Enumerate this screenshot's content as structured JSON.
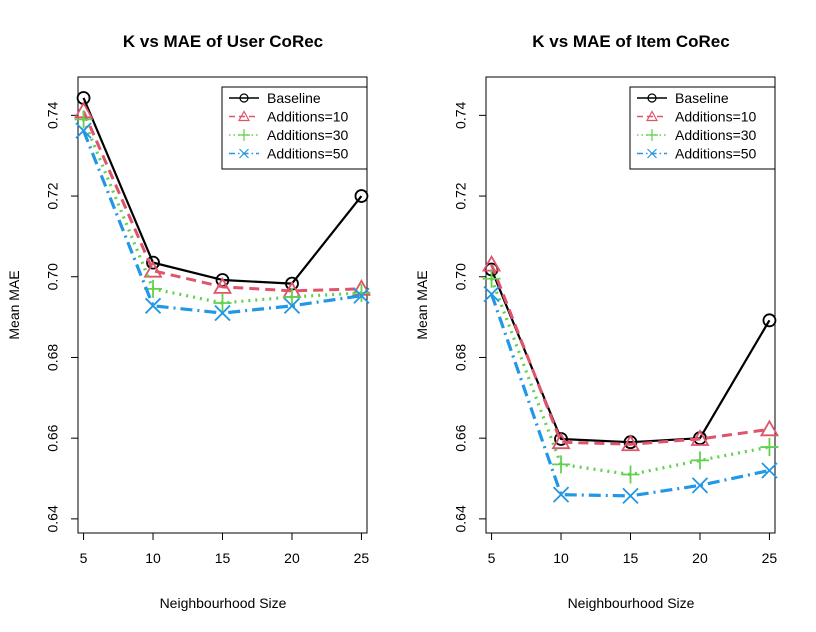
{
  "chart_data": [
    {
      "type": "line",
      "title": "K vs MAE of User CoRec",
      "xlabel": "Neighbourhood Size",
      "ylabel": "Mean MAE",
      "x": [
        5,
        10,
        15,
        20,
        25
      ],
      "xticks": [
        "5",
        "10",
        "15",
        "20",
        "25"
      ],
      "yticks": [
        "0.64",
        "0.66",
        "0.68",
        "0.70",
        "0.72",
        "0.74"
      ],
      "xlim": [
        4.6,
        25.4
      ],
      "ylim": [
        0.6365,
        0.7495
      ],
      "legend_position": "top-right",
      "series": [
        {
          "name": "Baseline",
          "values": [
            0.7443,
            0.7035,
            0.6992,
            0.6983,
            0.72
          ]
        },
        {
          "name": "Additions=10",
          "values": [
            0.741,
            0.7015,
            0.6975,
            0.6965,
            0.697
          ]
        },
        {
          "name": "Additions=30",
          "values": [
            0.739,
            0.697,
            0.6935,
            0.695,
            0.696
          ]
        },
        {
          "name": "Additions=50",
          "values": [
            0.7362,
            0.6928,
            0.691,
            0.6928,
            0.6953
          ]
        }
      ]
    },
    {
      "type": "line",
      "title": "K vs MAE of Item CoRec",
      "xlabel": "Neighbourhood Size",
      "ylabel": "Mean MAE",
      "x": [
        5,
        10,
        15,
        20,
        25
      ],
      "xticks": [
        "5",
        "10",
        "15",
        "20",
        "25"
      ],
      "yticks": [
        "0.64",
        "0.66",
        "0.68",
        "0.70",
        "0.72",
        "0.74"
      ],
      "xlim": [
        4.6,
        25.4
      ],
      "ylim": [
        0.6365,
        0.7495
      ],
      "legend_position": "top-right",
      "series": [
        {
          "name": "Baseline",
          "values": [
            0.7018,
            0.6598,
            0.659,
            0.66,
            0.6892
          ]
        },
        {
          "name": "Additions=10",
          "values": [
            0.703,
            0.659,
            0.6585,
            0.6598,
            0.6622
          ]
        },
        {
          "name": "Additions=30",
          "values": [
            0.6995,
            0.6535,
            0.651,
            0.6545,
            0.6578
          ]
        },
        {
          "name": "Additions=50",
          "values": [
            0.6957,
            0.646,
            0.6457,
            0.6483,
            0.652
          ]
        }
      ]
    }
  ],
  "series_styles": [
    {
      "color": "#000000",
      "dash": "",
      "width": 2.2,
      "marker": "circle"
    },
    {
      "color": "#DF536B",
      "dash": "10,6",
      "width": 3,
      "marker": "triangle"
    },
    {
      "color": "#61D04F",
      "dash": "2,5",
      "width": 3.2,
      "marker": "plus"
    },
    {
      "color": "#2297E6",
      "dash": "12,5,2,5",
      "width": 3.2,
      "marker": "cross"
    }
  ]
}
